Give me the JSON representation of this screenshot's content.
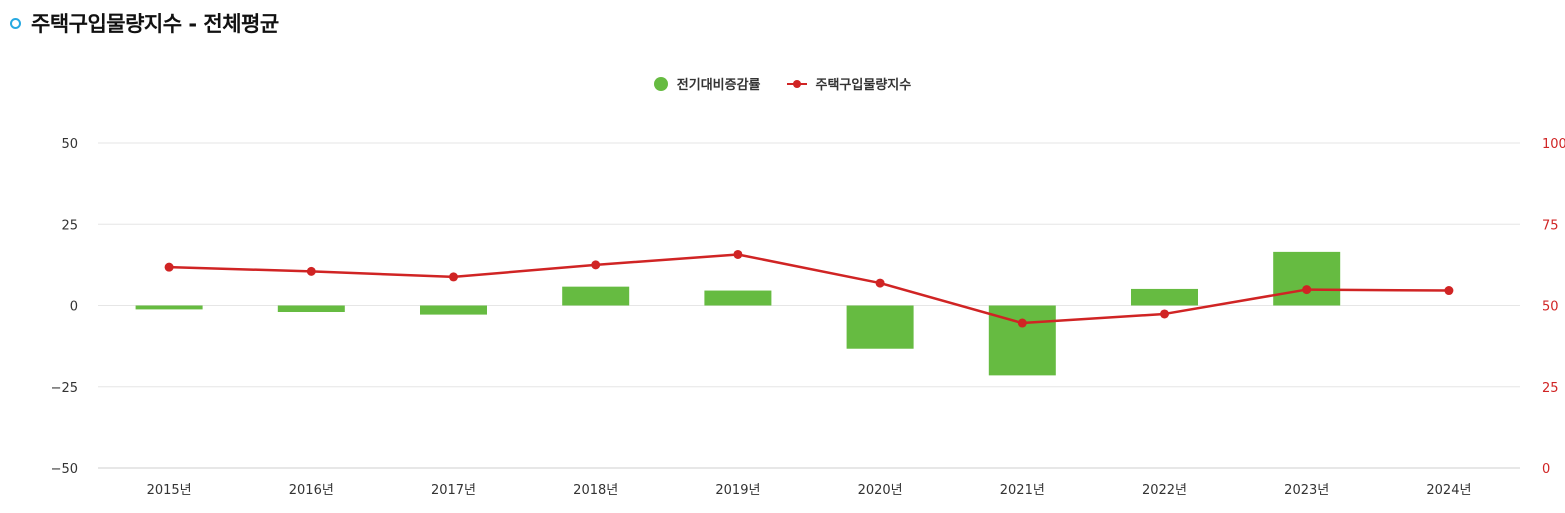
{
  "header": {
    "title": "주택구입물량지수 - 전체평균"
  },
  "colors": {
    "bar": "#66bb41",
    "line": "#d02424",
    "grid": "#e6e6e6",
    "bullet": "#27a9e1"
  },
  "chart_data": {
    "type": "bar",
    "categories": [
      "2015년",
      "2016년",
      "2017년",
      "2018년",
      "2019년",
      "2020년",
      "2021년",
      "2022년",
      "2023년",
      "2024년"
    ],
    "series": [
      {
        "name": "전기대비증감률",
        "type": "bar",
        "axis": "left",
        "values": [
          -1.2,
          -2.0,
          -2.8,
          5.8,
          4.6,
          -13.3,
          -21.5,
          5.1,
          16.5,
          null
        ]
      },
      {
        "name": "주택구입물량지수",
        "type": "line",
        "axis": "right",
        "values": [
          61.8,
          60.5,
          58.8,
          62.5,
          65.7,
          56.9,
          44.6,
          47.4,
          54.9,
          54.6
        ]
      }
    ],
    "y_left": {
      "ticks": [
        "50",
        "25",
        "0",
        "−25",
        "−50"
      ],
      "range": [
        -50,
        50
      ]
    },
    "y_right": {
      "ticks": [
        "100",
        "75",
        "50",
        "25",
        "0"
      ],
      "range": [
        0,
        100
      ]
    },
    "legend_position": "top-center",
    "grid": true
  }
}
